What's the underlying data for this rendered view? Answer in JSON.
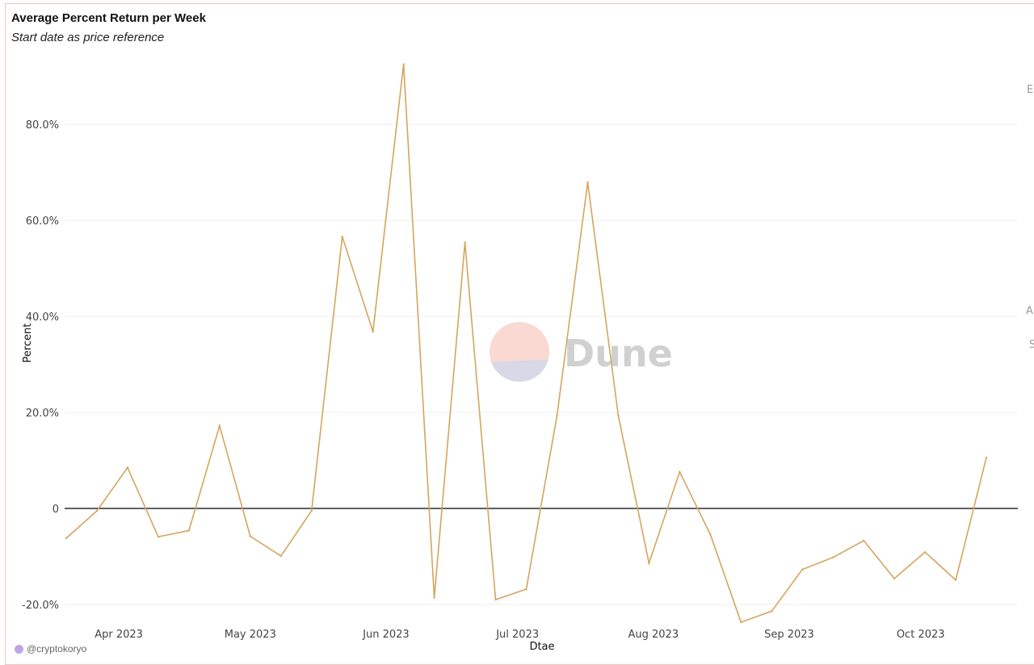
{
  "title": "Average Percent Return per Week",
  "subtitle": "Start date as price reference",
  "credit": "@cryptokoryo",
  "watermark": "Dune",
  "side_letters": [
    "E",
    "A",
    "S"
  ],
  "colors": {
    "line": "#d4a55e",
    "zero_line": "#000000",
    "grid": "#efefef",
    "frame": "#f3c4bb",
    "logo_top": "#f9d9d2",
    "logo_bottom": "#d8d8e6",
    "watermark_text": "#d0d0d0"
  },
  "chart_data": {
    "type": "line",
    "title": "Average Percent Return per Week",
    "subtitle": "Start date as price reference",
    "xlabel": "Dtae",
    "ylabel": "Percent",
    "ylim": [
      -22,
      93
    ],
    "yticks": [
      -20,
      0,
      20,
      40,
      60,
      80
    ],
    "ytick_labels": [
      "-20.0%",
      "0",
      "20.0%",
      "40.0%",
      "60.0%",
      "80.0%"
    ],
    "xlim": [
      "2023-03-20",
      "2023-10-23"
    ],
    "xticks": [
      {
        "date": "2023-04-01",
        "label": "Apr 2023"
      },
      {
        "date": "2023-05-01",
        "label": "May 2023"
      },
      {
        "date": "2023-06-01",
        "label": "Jun 2023"
      },
      {
        "date": "2023-07-01",
        "label": "Jul 2023"
      },
      {
        "date": "2023-08-01",
        "label": "Aug 2023"
      },
      {
        "date": "2023-09-01",
        "label": "Sep 2023"
      },
      {
        "date": "2023-10-01",
        "label": "Oct 2023"
      }
    ],
    "grid": true,
    "series": [
      {
        "points": [
          {
            "x": "2023-03-20",
            "y": -6.2
          },
          {
            "x": "2023-03-27",
            "y": -0.5
          },
          {
            "x": "2023-04-03",
            "y": 8.5
          },
          {
            "x": "2023-04-10",
            "y": -5.9
          },
          {
            "x": "2023-04-17",
            "y": -4.6
          },
          {
            "x": "2023-04-24",
            "y": 17.2
          },
          {
            "x": "2023-05-01",
            "y": -5.8
          },
          {
            "x": "2023-05-08",
            "y": -9.9
          },
          {
            "x": "2023-05-15",
            "y": -0.5
          },
          {
            "x": "2023-05-22",
            "y": 56.6
          },
          {
            "x": "2023-05-29",
            "y": 36.8
          },
          {
            "x": "2023-06-05",
            "y": 92.5
          },
          {
            "x": "2023-06-12",
            "y": -18.6
          },
          {
            "x": "2023-06-19",
            "y": 55.4
          },
          {
            "x": "2023-06-26",
            "y": -19.0
          },
          {
            "x": "2023-07-03",
            "y": -16.8
          },
          {
            "x": "2023-07-10",
            "y": 19.3
          },
          {
            "x": "2023-07-17",
            "y": 67.9
          },
          {
            "x": "2023-07-24",
            "y": 19.3
          },
          {
            "x": "2023-07-31",
            "y": -11.4
          },
          {
            "x": "2023-08-07",
            "y": 7.6
          },
          {
            "x": "2023-08-14",
            "y": -5.4
          },
          {
            "x": "2023-08-21",
            "y": -23.7
          },
          {
            "x": "2023-08-28",
            "y": -21.4
          },
          {
            "x": "2023-09-04",
            "y": -12.7
          },
          {
            "x": "2023-09-11",
            "y": -10.2
          },
          {
            "x": "2023-09-18",
            "y": -6.7
          },
          {
            "x": "2023-09-25",
            "y": -14.6
          },
          {
            "x": "2023-10-02",
            "y": -9.1
          },
          {
            "x": "2023-10-09",
            "y": -14.9
          },
          {
            "x": "2023-10-16",
            "y": 10.6
          }
        ]
      }
    ]
  }
}
